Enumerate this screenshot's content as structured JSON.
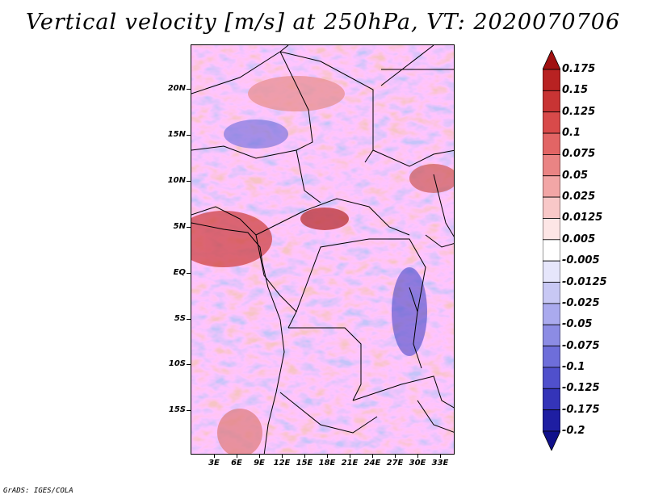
{
  "title": "Vertical velocity [m/s] at 250hPa, VT: 2020070706",
  "credit": "GrADS: IGES/COLA",
  "map": {
    "variable": "Vertical velocity",
    "units": "m/s",
    "level": "250hPa",
    "valid_time": "2020070706",
    "lat_labels": [
      "20N",
      "15N",
      "10N",
      "5N",
      "EQ",
      "5S",
      "10S",
      "15S"
    ],
    "lon_labels": [
      "3E",
      "6E",
      "9E",
      "12E",
      "15E",
      "18E",
      "21E",
      "24E",
      "27E",
      "30E",
      "33E"
    ]
  },
  "colorbar": {
    "levels": [
      "0.175",
      "0.15",
      "0.125",
      "0.1",
      "0.075",
      "0.05",
      "0.025",
      "0.0125",
      "0.005",
      "-0.005",
      "-0.0125",
      "-0.025",
      "-0.05",
      "-0.075",
      "-0.1",
      "-0.125",
      "-0.175",
      "-0.2"
    ],
    "colors": [
      "#a01010",
      "#b82222",
      "#c83434",
      "#d84a4a",
      "#e26565",
      "#ea8484",
      "#f2a6a6",
      "#f8c8c8",
      "#fde6e6",
      "#ffffff",
      "#e6e6fb",
      "#c8c8f4",
      "#aaaaee",
      "#8c8ce4",
      "#6e6eda",
      "#5050cc",
      "#3434b8",
      "#1e1ea2",
      "#10108a"
    ]
  }
}
